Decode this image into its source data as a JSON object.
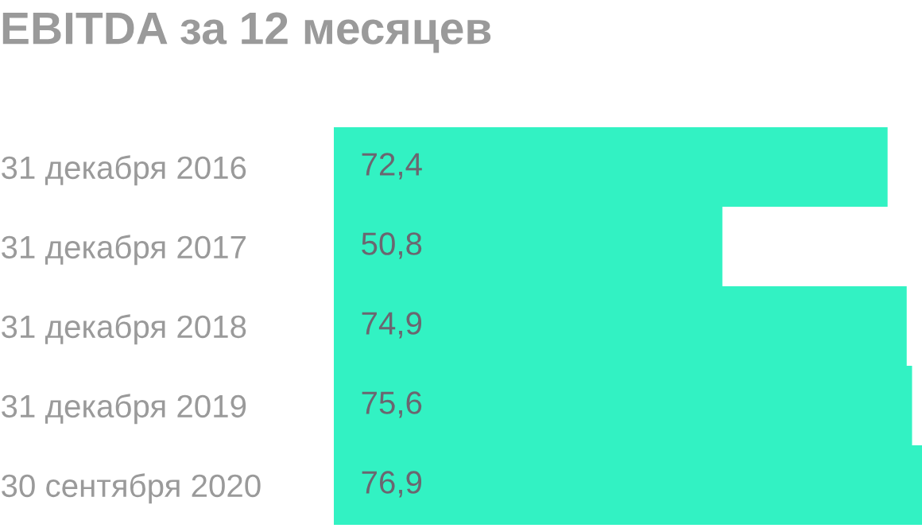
{
  "chart_data": {
    "type": "bar",
    "orientation": "horizontal",
    "title": "EBITDA за 12 месяцев",
    "categories": [
      "31 декабря 2016",
      "31 декабря 2017",
      "31 декабря 2018",
      "31 декабря 2019",
      "30 сентября 2020"
    ],
    "values": [
      72.4,
      50.8,
      74.9,
      75.6,
      76.9
    ],
    "value_labels": [
      "72,4",
      "50,8",
      "74,9",
      "75,6",
      "76,9"
    ],
    "color": "#32f2c3",
    "grid": false,
    "legend": false
  }
}
